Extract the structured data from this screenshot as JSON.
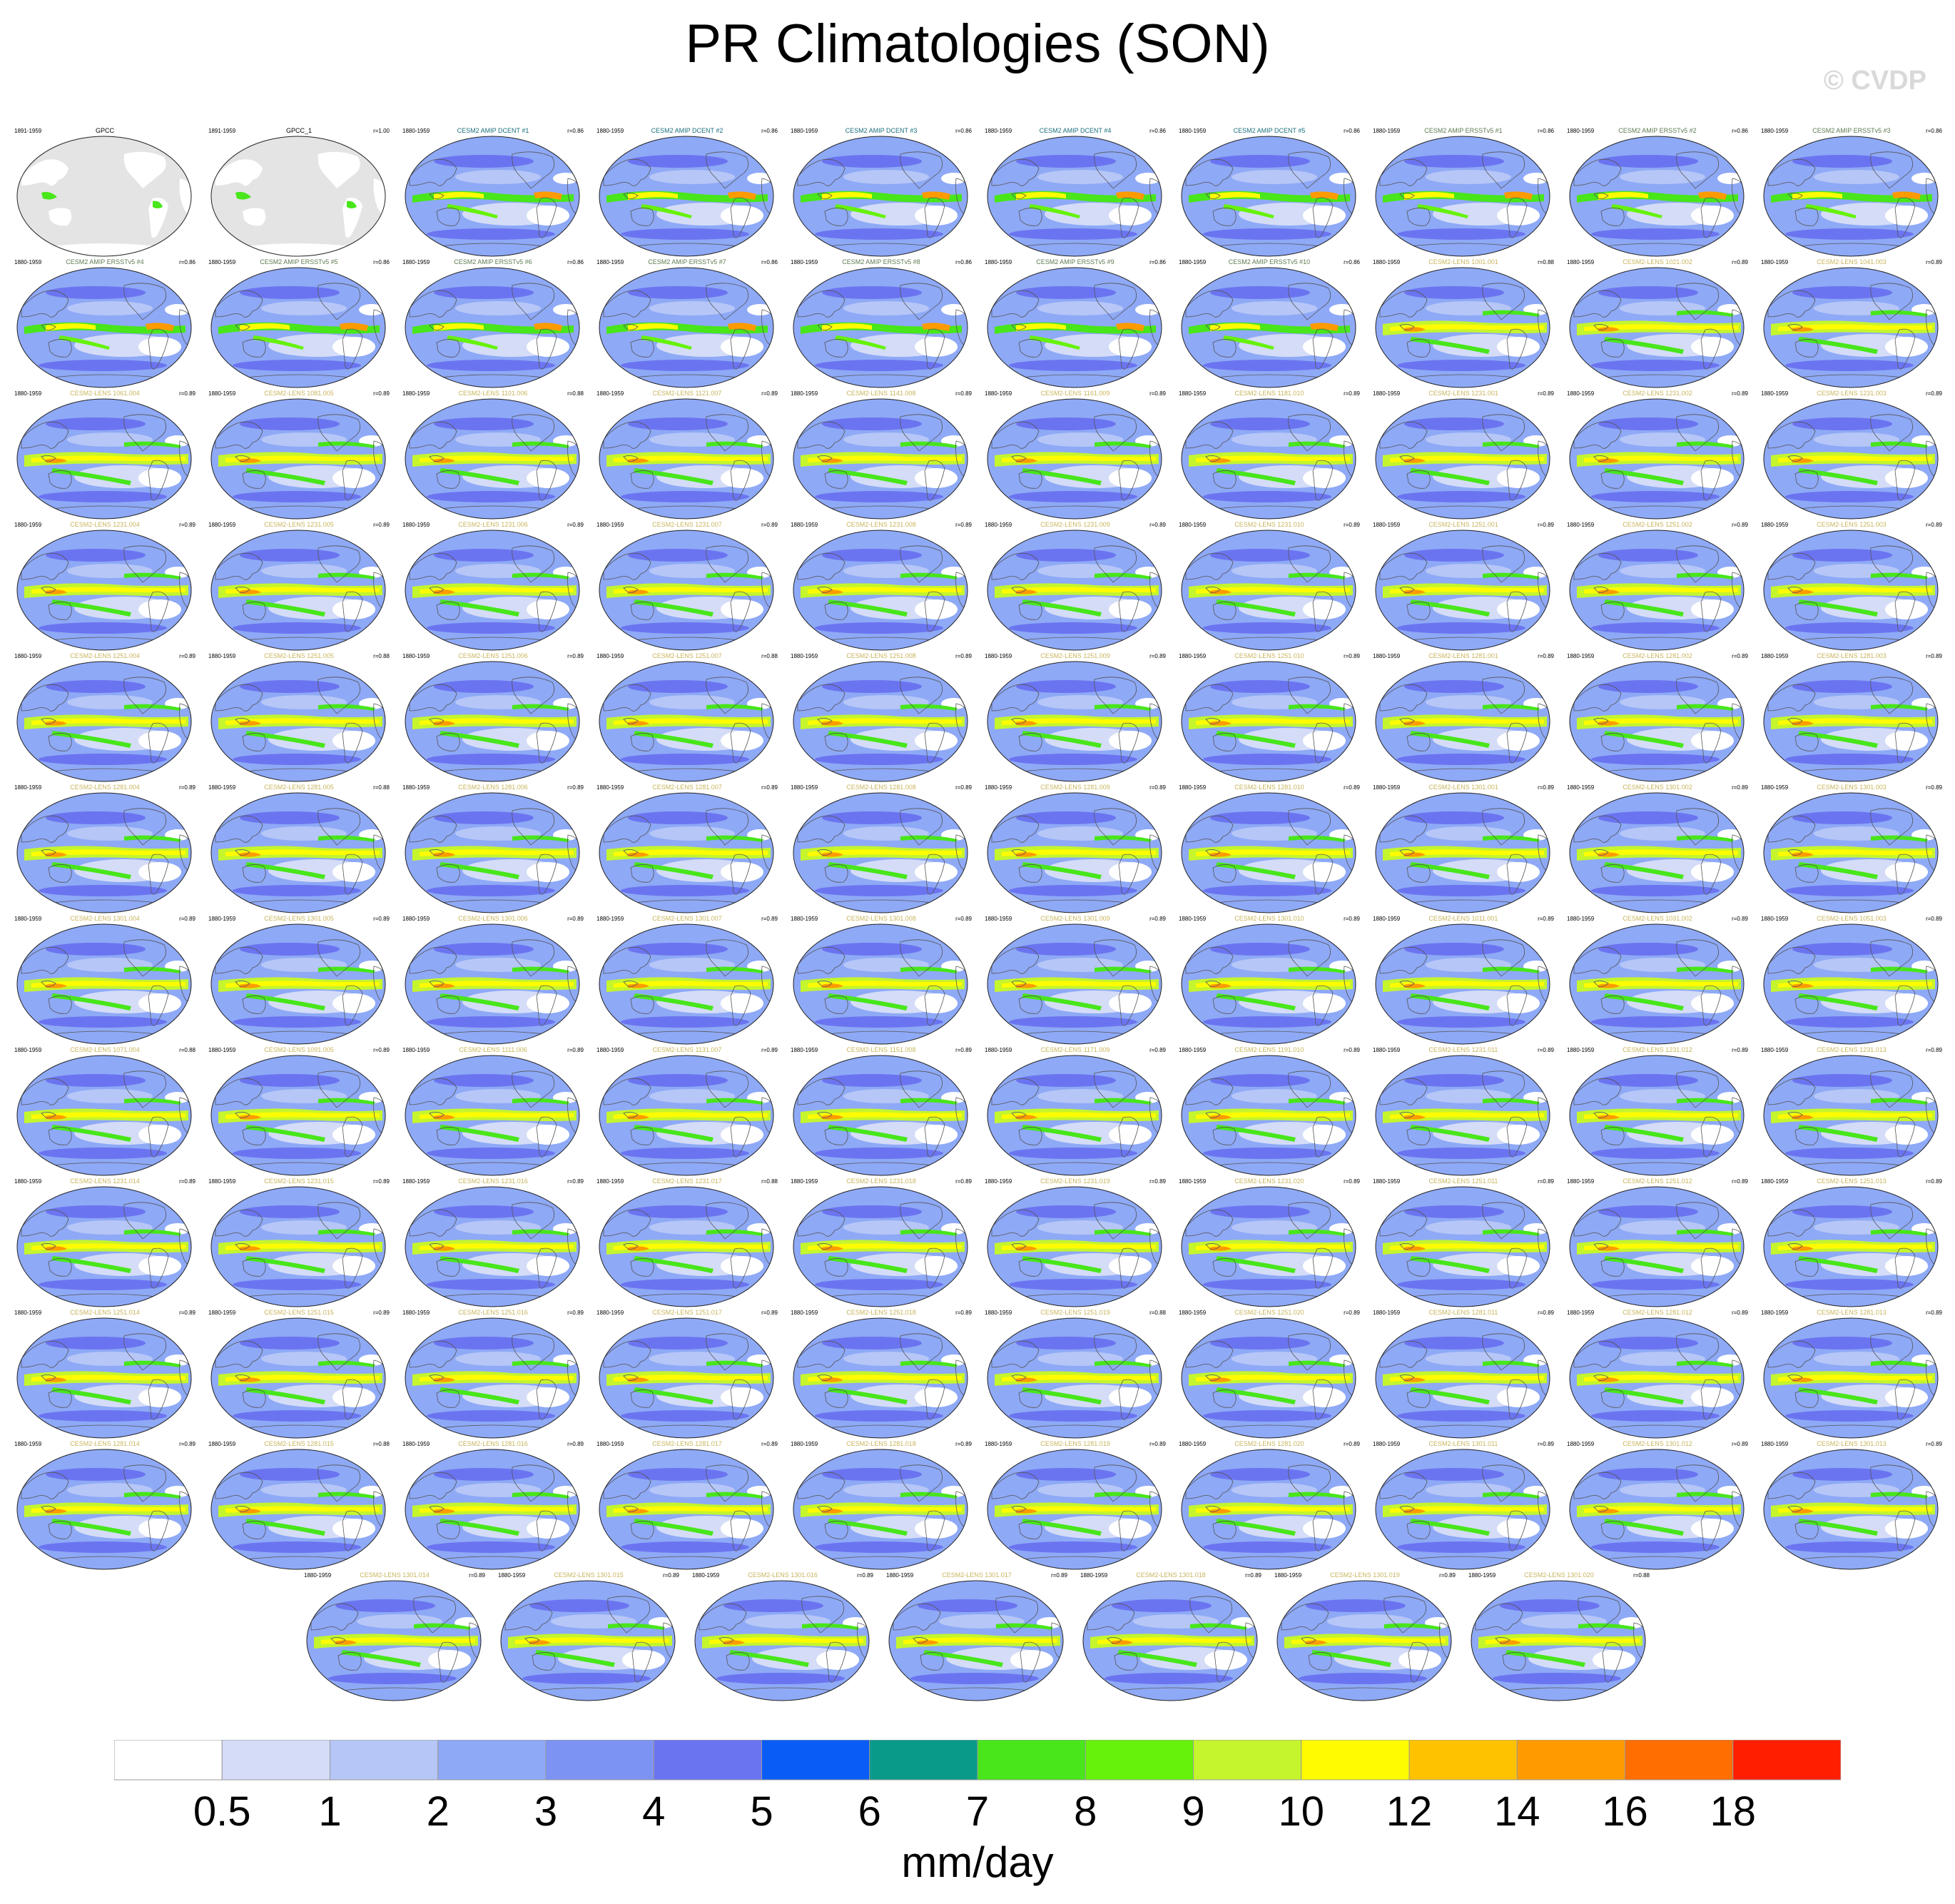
{
  "title": "PR Climatologies (SON)",
  "watermark": "© CVDP",
  "colorbar": {
    "unit": "mm/day",
    "levels": [
      "0.5",
      "1",
      "2",
      "3",
      "4",
      "5",
      "6",
      "7",
      "8",
      "9",
      "10",
      "12",
      "14",
      "16",
      "18"
    ],
    "colors": [
      "#ffffff",
      "#d4dcf7",
      "#b6c6f7",
      "#8ea9f6",
      "#7d93f3",
      "#6b74f0",
      "#0a5cf7",
      "#0a9a8a",
      "#48e61a",
      "#66f20a",
      "#c4f52d",
      "#fffb00",
      "#ffc200",
      "#ff9b00",
      "#ff6e00",
      "#ff1e00"
    ]
  },
  "chart_data": {
    "type": "heatmap",
    "title": "PR Climatologies (SON)",
    "unit": "mm/day",
    "levels": [
      0.5,
      1,
      2,
      3,
      4,
      5,
      6,
      7,
      8,
      9,
      10,
      12,
      14,
      16,
      18
    ],
    "panels": [
      {
        "name": "GPCC",
        "period": "1891-1959",
        "r": "",
        "color": "#000000"
      },
      {
        "name": "GPCC_1",
        "period": "1891-1959",
        "r": "r=1.00",
        "color": "#000000"
      },
      {
        "name": "CESM2 AMIP DCENT #1",
        "period": "1880-1959",
        "r": "r=0.86",
        "color": "#1a6e7e"
      },
      {
        "name": "CESM2 AMIP DCENT #2",
        "period": "1880-1959",
        "r": "r=0.86",
        "color": "#1a6e7e"
      },
      {
        "name": "CESM2 AMIP DCENT #3",
        "period": "1880-1959",
        "r": "r=0.86",
        "color": "#1a6e7e"
      },
      {
        "name": "CESM2 AMIP DCENT #4",
        "period": "1880-1959",
        "r": "r=0.86",
        "color": "#1a6e7e"
      },
      {
        "name": "CESM2 AMIP DCENT #5",
        "period": "1880-1959",
        "r": "r=0.86",
        "color": "#1a6e7e"
      },
      {
        "name": "CESM2 AMIP ERSSTv5 #1",
        "period": "1880-1959",
        "r": "r=0.86",
        "color": "#5e7a52"
      },
      {
        "name": "CESM2 AMIP ERSSTv5 #2",
        "period": "1880-1959",
        "r": "r=0.86",
        "color": "#5e7a52"
      },
      {
        "name": "CESM2 AMIP ERSSTv5 #3",
        "period": "1880-1959",
        "r": "r=0.86",
        "color": "#5e7a52"
      },
      {
        "name": "CESM2 AMIP ERSSTv5 #4",
        "period": "1880-1959",
        "r": "r=0.86",
        "color": "#5e7a52"
      },
      {
        "name": "CESM2 AMIP ERSSTv5 #5",
        "period": "1880-1959",
        "r": "r=0.86",
        "color": "#5e7a52"
      },
      {
        "name": "CESM2 AMIP ERSSTv5 #6",
        "period": "1880-1959",
        "r": "r=0.86",
        "color": "#5e7a52"
      },
      {
        "name": "CESM2 AMIP ERSSTv5 #7",
        "period": "1880-1959",
        "r": "r=0.86",
        "color": "#5e7a52"
      },
      {
        "name": "CESM2 AMIP ERSSTv5 #8",
        "period": "1880-1959",
        "r": "r=0.86",
        "color": "#5e7a52"
      },
      {
        "name": "CESM2 AMIP ERSSTv5 #9",
        "period": "1880-1959",
        "r": "r=0.86",
        "color": "#5e7a52"
      },
      {
        "name": "CESM2 AMIP ERSSTv5 #10",
        "period": "1880-1959",
        "r": "r=0.86",
        "color": "#5e7a52"
      },
      {
        "name": "CESM2-LENS 1001.001",
        "period": "1880-1959",
        "r": "r=0.88",
        "color": "#c8b45c"
      },
      {
        "name": "CESM2-LENS 1021.002",
        "period": "1880-1959",
        "r": "r=0.89",
        "color": "#c8b45c"
      },
      {
        "name": "CESM2-LENS 1041.003",
        "period": "1880-1959",
        "r": "r=0.89",
        "color": "#c8b45c"
      },
      {
        "name": "CESM2-LENS 1061.004",
        "period": "1880-1959",
        "r": "r=0.89",
        "color": "#c8b45c"
      },
      {
        "name": "CESM2-LENS 1081.005",
        "period": "1880-1959",
        "r": "r=0.89",
        "color": "#c8b45c"
      },
      {
        "name": "CESM2-LENS 1101.006",
        "period": "1880-1959",
        "r": "r=0.88",
        "color": "#c8b45c"
      },
      {
        "name": "CESM2-LENS 1121.007",
        "period": "1880-1959",
        "r": "r=0.89",
        "color": "#c8b45c"
      },
      {
        "name": "CESM2-LENS 1141.008",
        "period": "1880-1959",
        "r": "r=0.89",
        "color": "#c8b45c"
      },
      {
        "name": "CESM2-LENS 1161.009",
        "period": "1880-1959",
        "r": "r=0.89",
        "color": "#c8b45c"
      },
      {
        "name": "CESM2-LENS 1181.010",
        "period": "1880-1959",
        "r": "r=0.89",
        "color": "#c8b45c"
      },
      {
        "name": "CESM2-LENS 1231.001",
        "period": "1880-1959",
        "r": "r=0.89",
        "color": "#c8b45c"
      },
      {
        "name": "CESM2-LENS 1231.002",
        "period": "1880-1959",
        "r": "r=0.89",
        "color": "#c8b45c"
      },
      {
        "name": "CESM2-LENS 1231.003",
        "period": "1880-1959",
        "r": "r=0.89",
        "color": "#c8b45c"
      },
      {
        "name": "CESM2-LENS 1231.004",
        "period": "1880-1959",
        "r": "r=0.89",
        "color": "#c8b45c"
      },
      {
        "name": "CESM2-LENS 1231.005",
        "period": "1880-1959",
        "r": "r=0.89",
        "color": "#c8b45c"
      },
      {
        "name": "CESM2-LENS 1231.006",
        "period": "1880-1959",
        "r": "r=0.89",
        "color": "#c8b45c"
      },
      {
        "name": "CESM2-LENS 1231.007",
        "period": "1880-1959",
        "r": "r=0.89",
        "color": "#c8b45c"
      },
      {
        "name": "CESM2-LENS 1231.008",
        "period": "1880-1959",
        "r": "r=0.89",
        "color": "#c8b45c"
      },
      {
        "name": "CESM2-LENS 1231.009",
        "period": "1880-1959",
        "r": "r=0.89",
        "color": "#c8b45c"
      },
      {
        "name": "CESM2-LENS 1231.010",
        "period": "1880-1959",
        "r": "r=0.89",
        "color": "#c8b45c"
      },
      {
        "name": "CESM2-LENS 1251.001",
        "period": "1880-1959",
        "r": "r=0.89",
        "color": "#c8b45c"
      },
      {
        "name": "CESM2-LENS 1251.002",
        "period": "1880-1959",
        "r": "r=0.89",
        "color": "#c8b45c"
      },
      {
        "name": "CESM2-LENS 1251.003",
        "period": "1880-1959",
        "r": "r=0.89",
        "color": "#c8b45c"
      },
      {
        "name": "CESM2-LENS 1251.004",
        "period": "1880-1959",
        "r": "r=0.89",
        "color": "#c8b45c"
      },
      {
        "name": "CESM2-LENS 1251.005",
        "period": "1880-1959",
        "r": "r=0.88",
        "color": "#c8b45c"
      },
      {
        "name": "CESM2-LENS 1251.006",
        "period": "1880-1959",
        "r": "r=0.89",
        "color": "#c8b45c"
      },
      {
        "name": "CESM2-LENS 1251.007",
        "period": "1880-1959",
        "r": "r=0.88",
        "color": "#c8b45c"
      },
      {
        "name": "CESM2-LENS 1251.008",
        "period": "1880-1959",
        "r": "r=0.89",
        "color": "#c8b45c"
      },
      {
        "name": "CESM2-LENS 1251.009",
        "period": "1880-1959",
        "r": "r=0.89",
        "color": "#c8b45c"
      },
      {
        "name": "CESM2-LENS 1251.010",
        "period": "1880-1959",
        "r": "r=0.89",
        "color": "#c8b45c"
      },
      {
        "name": "CESM2-LENS 1281.001",
        "period": "1880-1959",
        "r": "r=0.89",
        "color": "#c8b45c"
      },
      {
        "name": "CESM2-LENS 1281.002",
        "period": "1880-1959",
        "r": "r=0.89",
        "color": "#c8b45c"
      },
      {
        "name": "CESM2-LENS 1281.003",
        "period": "1880-1959",
        "r": "r=0.89",
        "color": "#c8b45c"
      },
      {
        "name": "CESM2-LENS 1281.004",
        "period": "1880-1959",
        "r": "r=0.89",
        "color": "#c8b45c"
      },
      {
        "name": "CESM2-LENS 1281.005",
        "period": "1880-1959",
        "r": "r=0.88",
        "color": "#c8b45c"
      },
      {
        "name": "CESM2-LENS 1281.006",
        "period": "1880-1959",
        "r": "r=0.89",
        "color": "#c8b45c"
      },
      {
        "name": "CESM2-LENS 1281.007",
        "period": "1880-1959",
        "r": "r=0.89",
        "color": "#c8b45c"
      },
      {
        "name": "CESM2-LENS 1281.008",
        "period": "1880-1959",
        "r": "r=0.89",
        "color": "#c8b45c"
      },
      {
        "name": "CESM2-LENS 1281.009",
        "period": "1880-1959",
        "r": "r=0.89",
        "color": "#c8b45c"
      },
      {
        "name": "CESM2-LENS 1281.010",
        "period": "1880-1959",
        "r": "r=0.89",
        "color": "#c8b45c"
      },
      {
        "name": "CESM2-LENS 1301.001",
        "period": "1880-1959",
        "r": "r=0.89",
        "color": "#c8b45c"
      },
      {
        "name": "CESM2-LENS 1301.002",
        "period": "1880-1959",
        "r": "r=0.89",
        "color": "#c8b45c"
      },
      {
        "name": "CESM2-LENS 1301.003",
        "period": "1880-1959",
        "r": "r=0.89",
        "color": "#c8b45c"
      },
      {
        "name": "CESM2-LENS 1301.004",
        "period": "1880-1959",
        "r": "r=0.89",
        "color": "#c8b45c"
      },
      {
        "name": "CESM2-LENS 1301.005",
        "period": "1880-1959",
        "r": "r=0.89",
        "color": "#c8b45c"
      },
      {
        "name": "CESM2-LENS 1301.006",
        "period": "1880-1959",
        "r": "r=0.89",
        "color": "#c8b45c"
      },
      {
        "name": "CESM2-LENS 1301.007",
        "period": "1880-1959",
        "r": "r=0.89",
        "color": "#c8b45c"
      },
      {
        "name": "CESM2-LENS 1301.008",
        "period": "1880-1959",
        "r": "r=0.89",
        "color": "#c8b45c"
      },
      {
        "name": "CESM2-LENS 1301.009",
        "period": "1880-1959",
        "r": "r=0.89",
        "color": "#c8b45c"
      },
      {
        "name": "CESM2-LENS 1301.010",
        "period": "1880-1959",
        "r": "r=0.89",
        "color": "#c8b45c"
      },
      {
        "name": "CESM2-LENS 1011.001",
        "period": "1880-1959",
        "r": "r=0.89",
        "color": "#c8b45c"
      },
      {
        "name": "CESM2-LENS 1031.002",
        "period": "1880-1959",
        "r": "r=0.89",
        "color": "#c8b45c"
      },
      {
        "name": "CESM2-LENS 1051.003",
        "period": "1880-1959",
        "r": "r=0.89",
        "color": "#c8b45c"
      },
      {
        "name": "CESM2-LENS 1071.004",
        "period": "1880-1959",
        "r": "r=0.88",
        "color": "#c8b45c"
      },
      {
        "name": "CESM2-LENS 1091.005",
        "period": "1880-1959",
        "r": "r=0.89",
        "color": "#c8b45c"
      },
      {
        "name": "CESM2-LENS 1111.006",
        "period": "1880-1959",
        "r": "r=0.89",
        "color": "#c8b45c"
      },
      {
        "name": "CESM2-LENS 1131.007",
        "period": "1880-1959",
        "r": "r=0.89",
        "color": "#c8b45c"
      },
      {
        "name": "CESM2-LENS 1151.008",
        "period": "1880-1959",
        "r": "r=0.89",
        "color": "#c8b45c"
      },
      {
        "name": "CESM2-LENS 1171.009",
        "period": "1880-1959",
        "r": "r=0.89",
        "color": "#c8b45c"
      },
      {
        "name": "CESM2-LENS 1191.010",
        "period": "1880-1959",
        "r": "r=0.89",
        "color": "#c8b45c"
      },
      {
        "name": "CESM2-LENS 1231.011",
        "period": "1880-1959",
        "r": "r=0.89",
        "color": "#c8b45c"
      },
      {
        "name": "CESM2-LENS 1231.012",
        "period": "1880-1959",
        "r": "r=0.89",
        "color": "#c8b45c"
      },
      {
        "name": "CESM2-LENS 1231.013",
        "period": "1880-1959",
        "r": "r=0.89",
        "color": "#c8b45c"
      },
      {
        "name": "CESM2-LENS 1231.014",
        "period": "1880-1959",
        "r": "r=0.89",
        "color": "#c8b45c"
      },
      {
        "name": "CESM2-LENS 1231.015",
        "period": "1880-1959",
        "r": "r=0.89",
        "color": "#c8b45c"
      },
      {
        "name": "CESM2-LENS 1231.016",
        "period": "1880-1959",
        "r": "r=0.89",
        "color": "#c8b45c"
      },
      {
        "name": "CESM2-LENS 1231.017",
        "period": "1880-1959",
        "r": "r=0.88",
        "color": "#c8b45c"
      },
      {
        "name": "CESM2-LENS 1231.018",
        "period": "1880-1959",
        "r": "r=0.89",
        "color": "#c8b45c"
      },
      {
        "name": "CESM2-LENS 1231.019",
        "period": "1880-1959",
        "r": "r=0.89",
        "color": "#c8b45c"
      },
      {
        "name": "CESM2-LENS 1231.020",
        "period": "1880-1959",
        "r": "r=0.89",
        "color": "#c8b45c"
      },
      {
        "name": "CESM2-LENS 1251.011",
        "period": "1880-1959",
        "r": "r=0.89",
        "color": "#c8b45c"
      },
      {
        "name": "CESM2-LENS 1251.012",
        "period": "1880-1959",
        "r": "r=0.89",
        "color": "#c8b45c"
      },
      {
        "name": "CESM2-LENS 1251.013",
        "period": "1880-1959",
        "r": "r=0.89",
        "color": "#c8b45c"
      },
      {
        "name": "CESM2-LENS 1251.014",
        "period": "1880-1959",
        "r": "r=0.89",
        "color": "#c8b45c"
      },
      {
        "name": "CESM2-LENS 1251.015",
        "period": "1880-1959",
        "r": "r=0.89",
        "color": "#c8b45c"
      },
      {
        "name": "CESM2-LENS 1251.016",
        "period": "1880-1959",
        "r": "r=0.89",
        "color": "#c8b45c"
      },
      {
        "name": "CESM2-LENS 1251.017",
        "period": "1880-1959",
        "r": "r=0.89",
        "color": "#c8b45c"
      },
      {
        "name": "CESM2-LENS 1251.018",
        "period": "1880-1959",
        "r": "r=0.89",
        "color": "#c8b45c"
      },
      {
        "name": "CESM2-LENS 1251.019",
        "period": "1880-1959",
        "r": "r=0.88",
        "color": "#c8b45c"
      },
      {
        "name": "CESM2-LENS 1251.020",
        "period": "1880-1959",
        "r": "r=0.89",
        "color": "#c8b45c"
      },
      {
        "name": "CESM2-LENS 1281.011",
        "period": "1880-1959",
        "r": "r=0.89",
        "color": "#c8b45c"
      },
      {
        "name": "CESM2-LENS 1281.012",
        "period": "1880-1959",
        "r": "r=0.89",
        "color": "#c8b45c"
      },
      {
        "name": "CESM2-LENS 1281.013",
        "period": "1880-1959",
        "r": "r=0.89",
        "color": "#c8b45c"
      },
      {
        "name": "CESM2-LENS 1281.014",
        "period": "1880-1959",
        "r": "r=0.89",
        "color": "#c8b45c"
      },
      {
        "name": "CESM2-LENS 1281.015",
        "period": "1880-1959",
        "r": "r=0.88",
        "color": "#c8b45c"
      },
      {
        "name": "CESM2-LENS 1281.016",
        "period": "1880-1959",
        "r": "r=0.89",
        "color": "#c8b45c"
      },
      {
        "name": "CESM2-LENS 1281.017",
        "period": "1880-1959",
        "r": "r=0.89",
        "color": "#c8b45c"
      },
      {
        "name": "CESM2-LENS 1281.018",
        "period": "1880-1959",
        "r": "r=0.89",
        "color": "#c8b45c"
      },
      {
        "name": "CESM2-LENS 1281.019",
        "period": "1880-1959",
        "r": "r=0.89",
        "color": "#c8b45c"
      },
      {
        "name": "CESM2-LENS 1281.020",
        "period": "1880-1959",
        "r": "r=0.89",
        "color": "#c8b45c"
      },
      {
        "name": "CESM2-LENS 1301.011",
        "period": "1880-1959",
        "r": "r=0.89",
        "color": "#c8b45c"
      },
      {
        "name": "CESM2-LENS 1301.012",
        "period": "1880-1959",
        "r": "r=0.89",
        "color": "#c8b45c"
      },
      {
        "name": "CESM2-LENS 1301.013",
        "period": "1880-1959",
        "r": "r=0.89",
        "color": "#c8b45c"
      },
      {
        "name": "CESM2-LENS 1301.014",
        "period": "1880-1959",
        "r": "r=0.89",
        "color": "#c8b45c"
      },
      {
        "name": "CESM2-LENS 1301.015",
        "period": "1880-1959",
        "r": "r=0.89",
        "color": "#c8b45c"
      },
      {
        "name": "CESM2-LENS 1301.016",
        "period": "1880-1959",
        "r": "r=0.89",
        "color": "#c8b45c"
      },
      {
        "name": "CESM2-LENS 1301.017",
        "period": "1880-1959",
        "r": "r=0.89",
        "color": "#c8b45c"
      },
      {
        "name": "CESM2-LENS 1301.018",
        "period": "1880-1959",
        "r": "r=0.89",
        "color": "#c8b45c"
      },
      {
        "name": "CESM2-LENS 1301.019",
        "period": "1880-1959",
        "r": "r=0.89",
        "color": "#c8b45c"
      },
      {
        "name": "CESM2-LENS 1301.020",
        "period": "1880-1959",
        "r": "r=0.88",
        "color": "#c8b45c"
      }
    ]
  }
}
